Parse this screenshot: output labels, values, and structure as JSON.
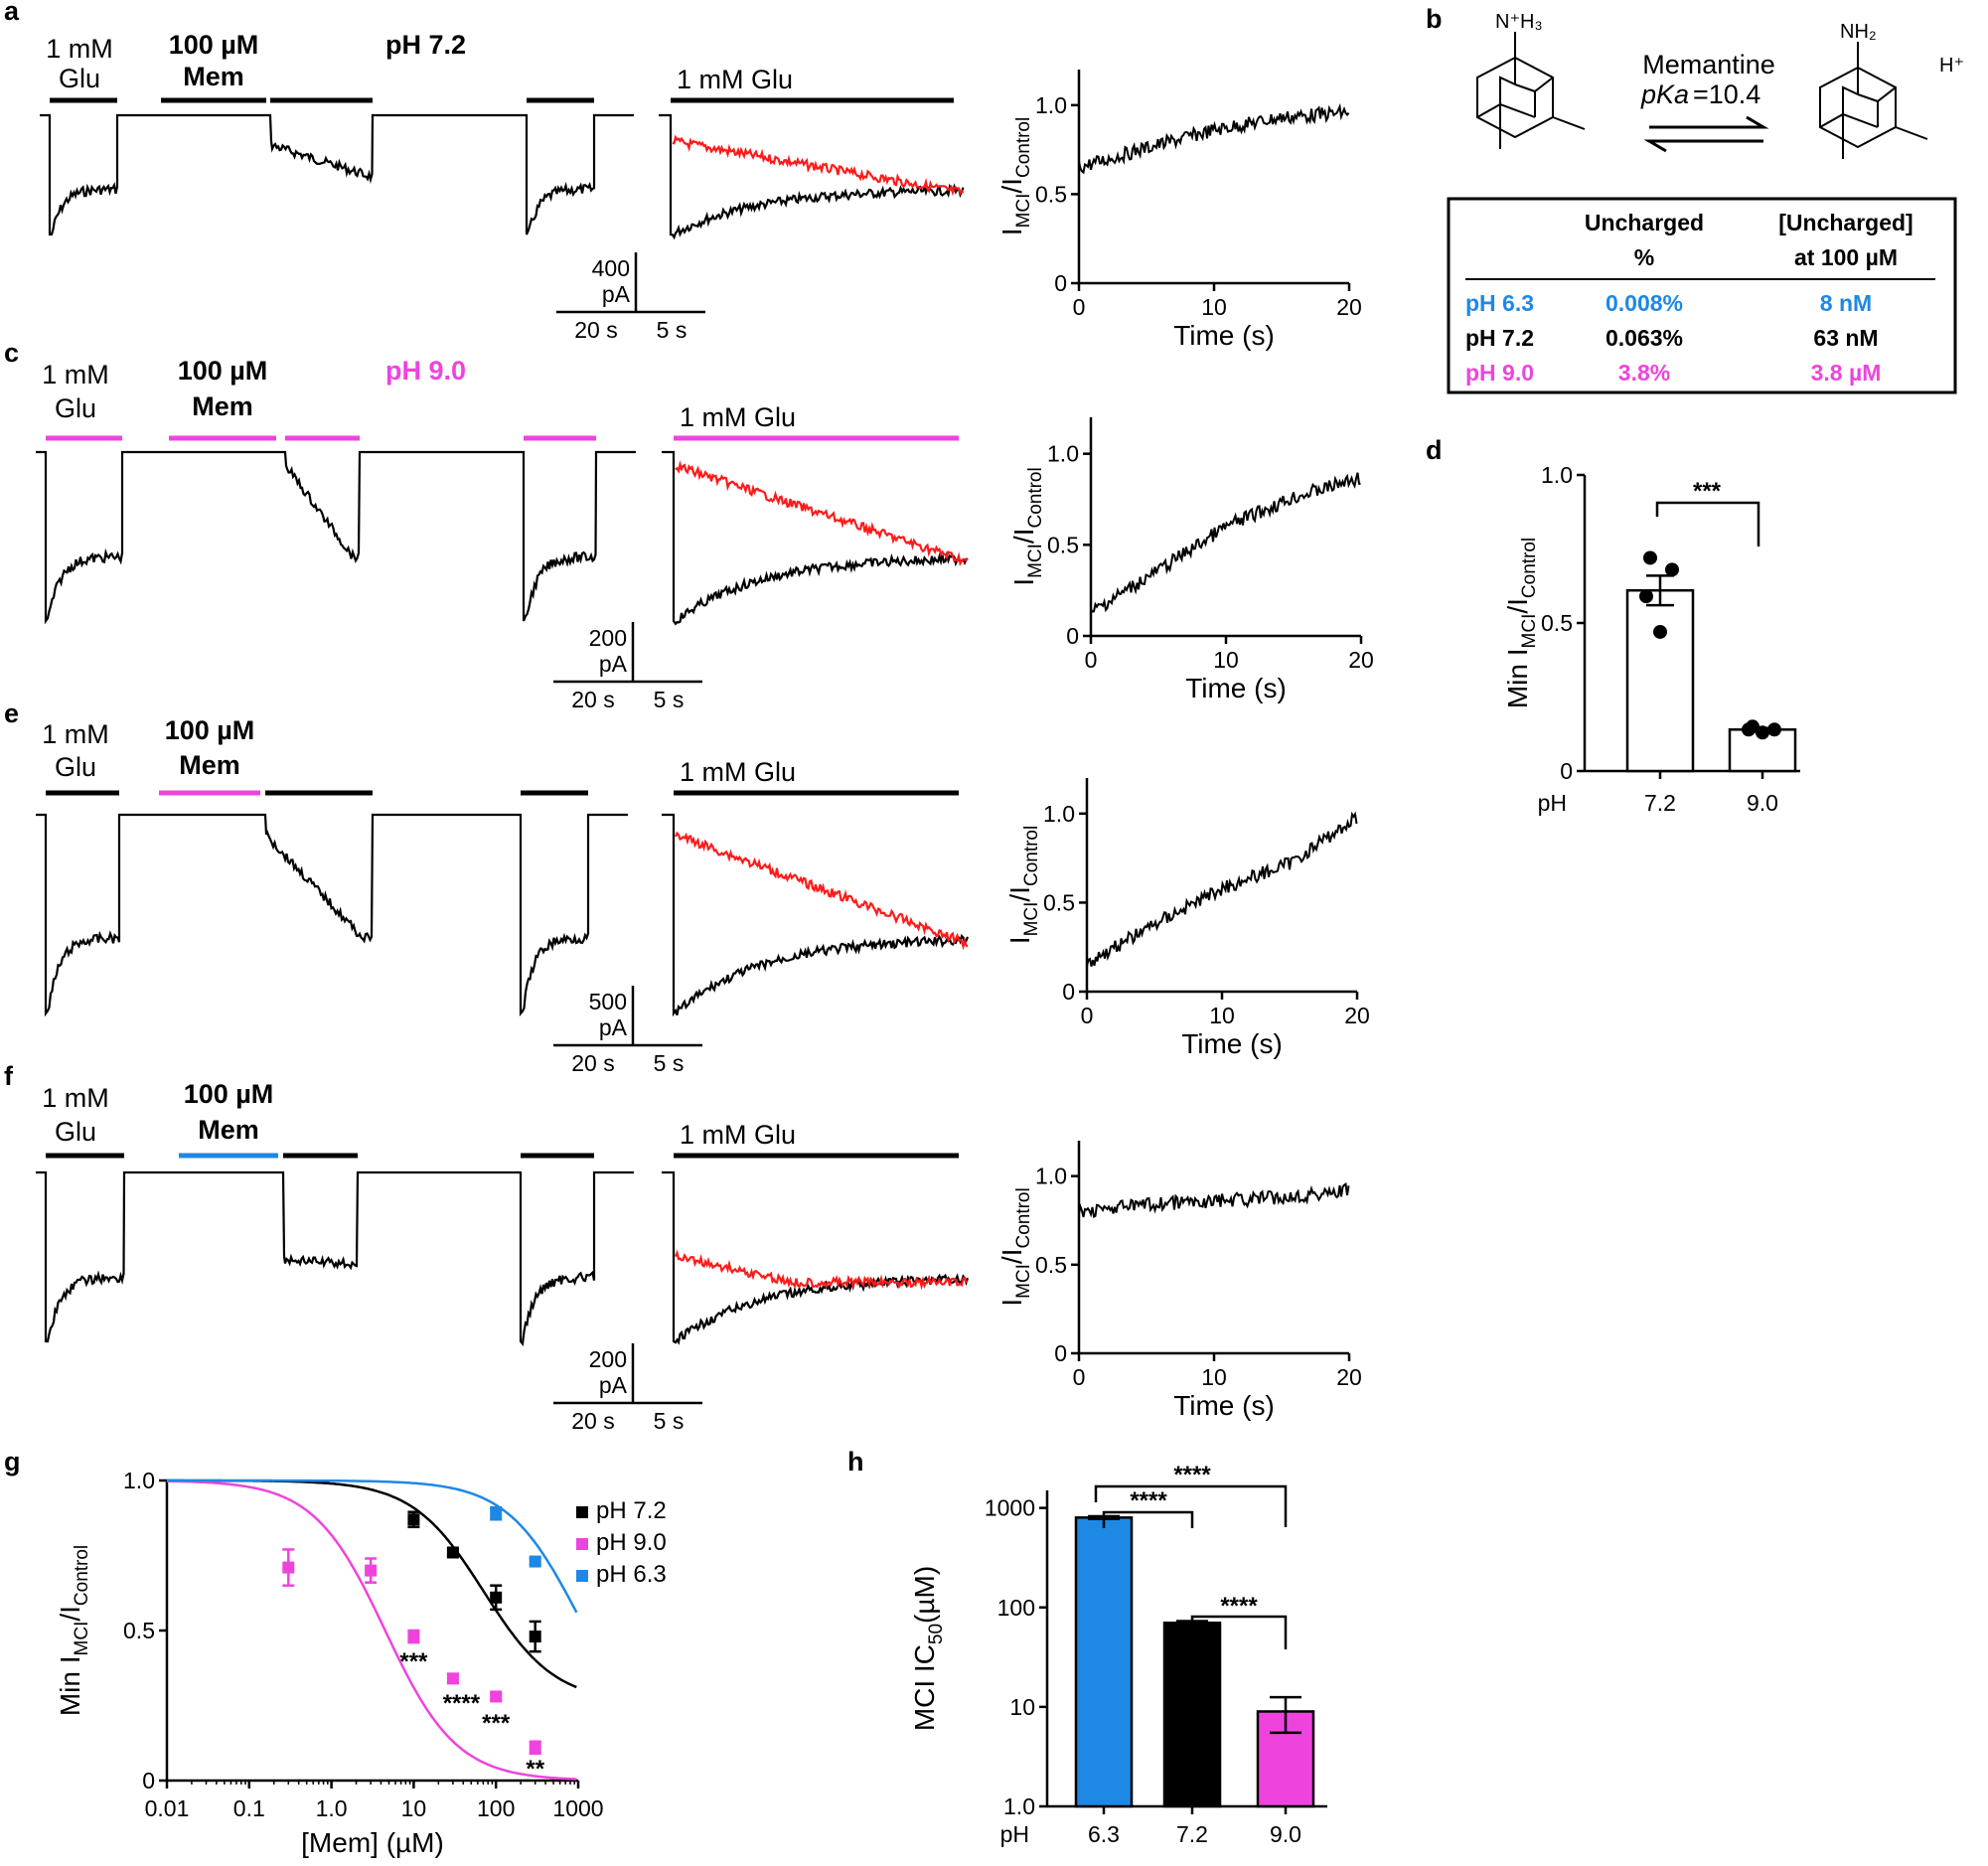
{
  "panels": {
    "a": {
      "letter": "a",
      "pH": "pH 7.2",
      "pH_color": "#000000",
      "glu1_label": [
        "1 mM",
        "Glu"
      ],
      "mem_label": [
        "100 µM",
        "Mem"
      ],
      "mem_bar_color": "#000000",
      "bar_color": "#000000",
      "long_glu_label": "1 mM Glu",
      "scale_current": [
        "400",
        "pA"
      ],
      "scale_time_a": "20 s",
      "scale_time_b": "5 s",
      "depth": 0.35,
      "descent": 0.55,
      "ratio": "a_ratio"
    },
    "c": {
      "letter": "c",
      "pH": "pH 9.0",
      "pH_color": "#ee44dd",
      "glu1_label": [
        "1 mM",
        "Glu"
      ],
      "mem_label": [
        "100 µM",
        "Mem"
      ],
      "mem_bar_color": "#ee44dd",
      "bar_color": "#ee44dd",
      "long_glu_label": "1 mM Glu",
      "scale_current": [
        "200",
        "pA"
      ],
      "scale_time_a": "20 s",
      "scale_time_b": "5 s",
      "depth": 0.13,
      "descent": 0.9,
      "ratio": "c_ratio"
    },
    "e": {
      "letter": "e",
      "pH": "",
      "pH_color": "#ee44dd",
      "glu1_label": [
        "1 mM",
        "Glu"
      ],
      "mem_label": [
        "100 µM",
        "Mem"
      ],
      "mem_bar_color": "#ee44dd",
      "bar_color": "#000000",
      "long_glu_label": "1 mM Glu",
      "scale_current": [
        "500",
        "pA"
      ],
      "scale_time_a": "20 s",
      "scale_time_b": "5 s",
      "depth": 0.16,
      "descent": 0.9,
      "ratio": "e_ratio"
    },
    "f": {
      "letter": "f",
      "pH": "",
      "pH_color": "#000000",
      "glu1_label": [
        "1 mM",
        "Glu"
      ],
      "mem_label": [
        "100 µM",
        "Mem"
      ],
      "mem_bar_color": "#1e88e5",
      "bar_color": "#000000",
      "long_glu_label": "1 mM Glu",
      "scale_current": [
        "200",
        "pA"
      ],
      "scale_time_a": "20 s",
      "scale_time_b": "5 s",
      "depth": 0.8,
      "descent": 0.18,
      "ratio": "f_ratio"
    }
  },
  "panel_b": {
    "letter": "b",
    "left_group": "N⁺H₃",
    "right_group": "NH₂",
    "proton": "H⁺",
    "equilibrium_title": "Memantine",
    "pka_label": "pKa",
    "pka_value": "=10.4",
    "table": {
      "headers": [
        "Uncharged",
        "%",
        "[Uncharged]",
        "at 100 µM"
      ],
      "rows": [
        {
          "ph": "pH 6.3",
          "pct": "0.008%",
          "conc": "8 nM",
          "color": "#1e88e5"
        },
        {
          "ph": "pH 7.2",
          "pct": "0.063%",
          "conc": "63 nM",
          "color": "#000000"
        },
        {
          "ph": "pH 9.0",
          "pct": "3.8%",
          "conc": "3.8 µM",
          "color": "#ee44dd"
        }
      ]
    }
  },
  "chart_data": [
    {
      "id": "a_ratio",
      "type": "line",
      "title": "",
      "xlabel": "Time (s)",
      "ylabel": "I_MCI/I_Control",
      "xlim": [
        0,
        20
      ],
      "ylim": [
        0,
        1.2
      ],
      "xticks": [
        0,
        10,
        20
      ],
      "yticks": [
        0,
        0.5,
        1.0
      ],
      "ytick_labels": [
        "0",
        "0.5",
        "1.0"
      ],
      "series": [
        {
          "name": "ratio",
          "x": [
            0,
            5,
            10,
            15,
            20
          ],
          "values": [
            0.65,
            0.76,
            0.86,
            0.93,
            0.96
          ]
        }
      ]
    },
    {
      "id": "c_ratio",
      "type": "line",
      "title": "",
      "xlabel": "Time (s)",
      "ylabel": "I_MCI/I_Control",
      "xlim": [
        0,
        20
      ],
      "ylim": [
        0,
        1.2
      ],
      "xticks": [
        0,
        10,
        20
      ],
      "yticks": [
        0,
        0.5,
        1.0
      ],
      "ytick_labels": [
        "0",
        "0.5",
        "1.0"
      ],
      "series": [
        {
          "name": "ratio",
          "x": [
            0,
            5,
            10,
            15,
            20
          ],
          "values": [
            0.13,
            0.36,
            0.6,
            0.76,
            0.87
          ]
        }
      ]
    },
    {
      "id": "e_ratio",
      "type": "line",
      "title": "",
      "xlabel": "Time (s)",
      "ylabel": "I_MCI/I_Control",
      "xlim": [
        0,
        20
      ],
      "ylim": [
        0,
        1.2
      ],
      "xticks": [
        0,
        10,
        20
      ],
      "yticks": [
        0,
        0.5,
        1.0
      ],
      "ytick_labels": [
        "0",
        "0.5",
        "1.0"
      ],
      "series": [
        {
          "name": "ratio",
          "x": [
            0,
            5,
            10,
            15,
            20
          ],
          "values": [
            0.16,
            0.38,
            0.58,
            0.72,
            0.98
          ]
        }
      ]
    },
    {
      "id": "f_ratio",
      "type": "line",
      "title": "",
      "xlabel": "Time (s)",
      "ylabel": "I_MCI/I_Control",
      "xlim": [
        0,
        20
      ],
      "ylim": [
        0,
        1.2
      ],
      "xticks": [
        0,
        10,
        20
      ],
      "yticks": [
        0,
        0.5,
        1.0
      ],
      "ytick_labels": [
        "0",
        "0.5",
        "1.0"
      ],
      "series": [
        {
          "name": "ratio",
          "x": [
            0,
            5,
            10,
            15,
            20
          ],
          "values": [
            0.8,
            0.84,
            0.86,
            0.88,
            0.92
          ]
        }
      ]
    },
    {
      "id": "d_bar",
      "type": "bar",
      "letter": "d",
      "title": "",
      "xlabel": "pH",
      "ylabel": "Min I_MCI/I_Control",
      "categories": [
        "7.2",
        "9.0"
      ],
      "values": [
        0.61,
        0.14
      ],
      "sem": [
        0.05,
        0.005
      ],
      "points": [
        [
          0.72,
          0.68,
          0.59,
          0.47
        ],
        [
          0.15,
          0.14,
          0.14,
          0.13
        ]
      ],
      "ylim": [
        0,
        1.0
      ],
      "yticks": [
        0,
        0.5,
        1.0
      ],
      "ytick_labels": [
        "0",
        "0.5",
        "1.0"
      ],
      "significance": "***"
    },
    {
      "id": "g_dose",
      "type": "scatter",
      "letter": "g",
      "title": "",
      "xlabel": "[Mem] (µM)",
      "ylabel": "Min I_MCI/I_Control",
      "xscale": "log",
      "xlim": [
        0.01,
        1000
      ],
      "ylim": [
        0,
        1.0
      ],
      "xticks": [
        0.01,
        0.1,
        1,
        10,
        100,
        1000
      ],
      "xtick_labels": [
        "0.01",
        "0.1",
        "1.0",
        "10",
        "100",
        "1000"
      ],
      "yticks": [
        0,
        0.5,
        1.0
      ],
      "ytick_labels": [
        "0",
        "0.5",
        "1.0"
      ],
      "legend_position": "top-right",
      "series": [
        {
          "name": "pH 7.2",
          "color": "#000000",
          "x": [
            10,
            30,
            100,
            300
          ],
          "values": [
            0.87,
            0.76,
            0.61,
            0.48
          ],
          "err": [
            0.025,
            0.01,
            0.04,
            0.05
          ],
          "fit_ic50": 71,
          "fit_min": 0.26
        },
        {
          "name": "pH 9.0",
          "color": "#ee44dd",
          "x": [
            0.3,
            3,
            10,
            30,
            100,
            300
          ],
          "values": [
            0.71,
            0.7,
            0.48,
            0.34,
            0.28,
            0.11
          ],
          "err": [
            0.06,
            0.04,
            0.02,
            0.015,
            0.01,
            0.02
          ],
          "fit_ic50": 4.5,
          "fit_min": 0.0
        },
        {
          "name": "pH 6.3",
          "color": "#1e88e5",
          "x": [
            100,
            300
          ],
          "values": [
            0.89,
            0.73
          ],
          "err": [
            0.02,
            0.01
          ],
          "fit_ic50": 1000,
          "fit_min": 0.1
        }
      ],
      "annotations": [
        "***",
        "****",
        "***",
        "**"
      ]
    },
    {
      "id": "h_bar",
      "type": "bar",
      "letter": "h",
      "title": "",
      "xlabel": "pH",
      "ylabel": "MCI IC50(µM)",
      "yscale": "log",
      "categories": [
        "6.3",
        "7.2",
        "9.0"
      ],
      "values": [
        800,
        70,
        9
      ],
      "sem": [
        25,
        3,
        3.5
      ],
      "colors": [
        "#1e88e5",
        "#000000",
        "#ee44dd"
      ],
      "ylim": [
        1,
        1500
      ],
      "yticks": [
        1,
        10,
        100,
        1000
      ],
      "ytick_labels": [
        "1.0",
        "10",
        "100",
        "1000"
      ],
      "significance": [
        "****",
        "****",
        "****"
      ]
    }
  ]
}
